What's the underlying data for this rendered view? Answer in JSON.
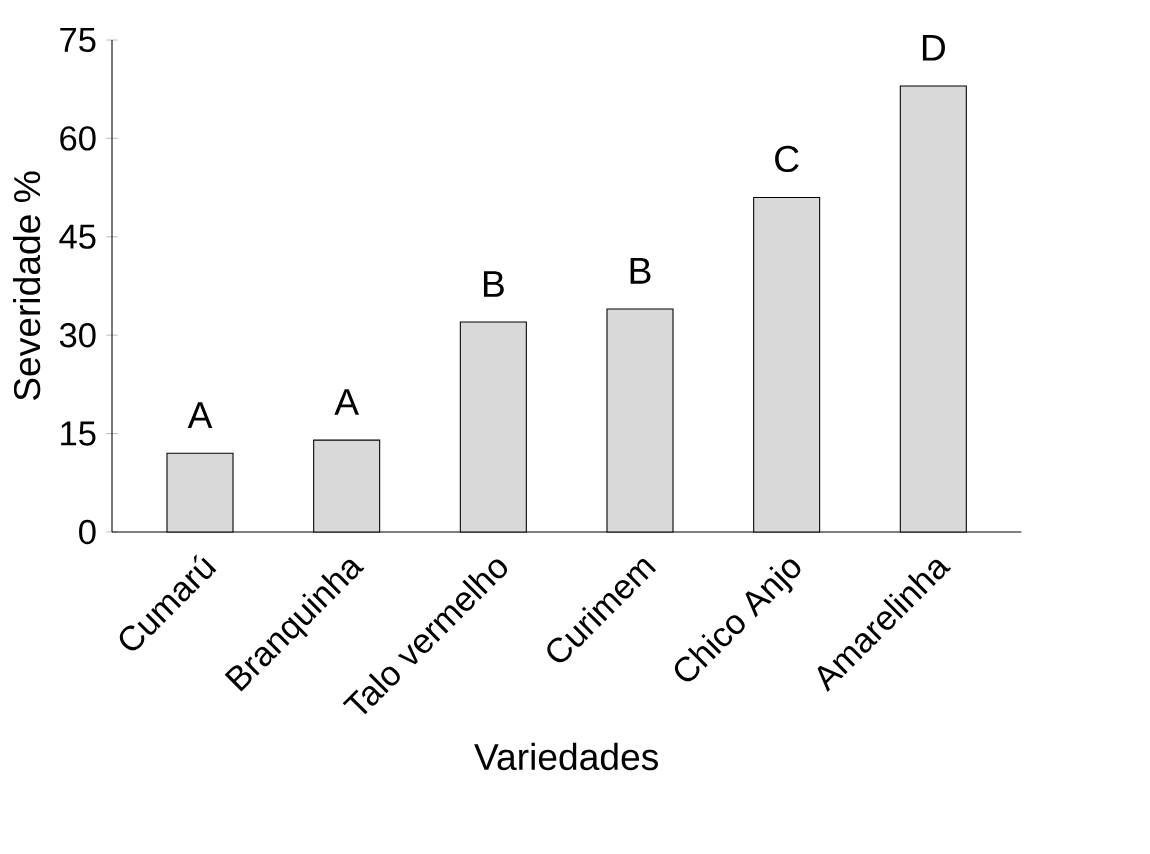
{
  "chart_data": {
    "type": "bar",
    "xlabel": "Variedades",
    "ylabel": "Severidade %",
    "categories": [
      "Cumarú",
      "Branquinha",
      "Talo vermelho",
      "Curimem",
      "Chico Anjo",
      "Amarelinha"
    ],
    "values": [
      12,
      14,
      32,
      34,
      51,
      68
    ],
    "color": "#d9d9d9",
    "ylim": [
      0,
      75
    ],
    "yticks": [
      0,
      15,
      30,
      45,
      60,
      75
    ],
    "annotations": [
      {
        "text": "A",
        "x": "Cumarú",
        "y": 12
      },
      {
        "text": "A",
        "x": "Branquinha",
        "y": 14
      },
      {
        "text": "B",
        "x": "Talo vermelho",
        "y": 32
      },
      {
        "text": "B",
        "x": "Curimem",
        "y": 34
      },
      {
        "text": "C",
        "x": "Chico Anjo",
        "y": 51
      },
      {
        "text": "D",
        "x": "Amarelinha",
        "y": 68
      }
    ]
  }
}
